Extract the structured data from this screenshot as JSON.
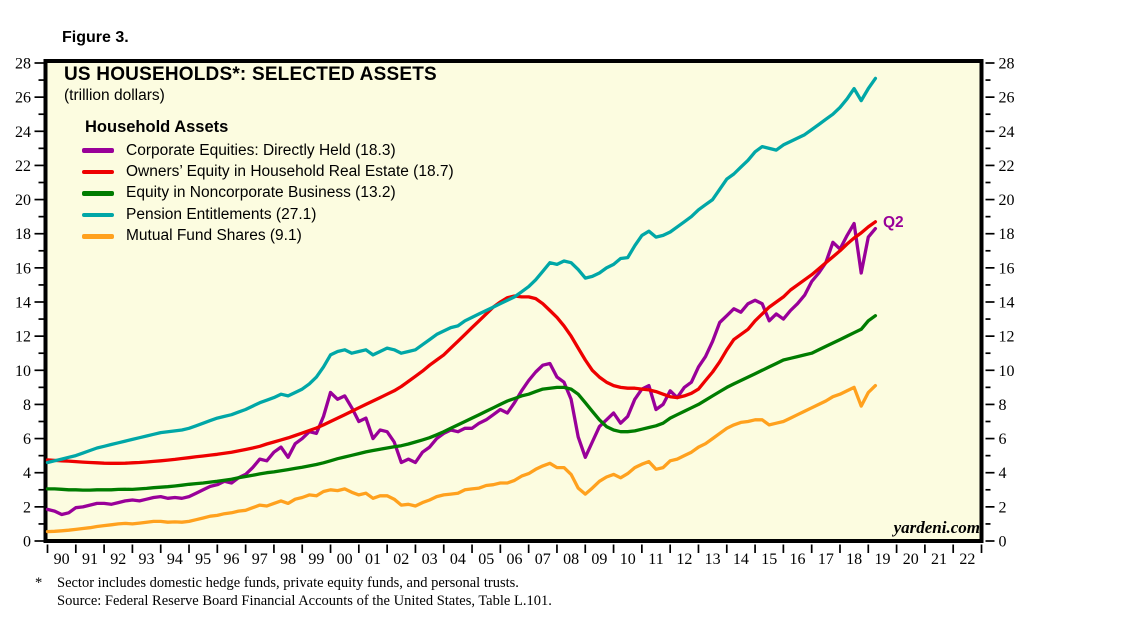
{
  "figure_label": "Figure 3.",
  "chart": {
    "title": "US HOUSEHOLDS*: SELECTED ASSETS",
    "subtitle": "(trillion dollars)",
    "legend_title": "Household Assets",
    "annotation_q2": "Q2",
    "watermark": "yardeni.com",
    "background_color": "#FCFCE0",
    "frame_color": "#000000"
  },
  "footnote": {
    "marker": "*",
    "line1": "Sector includes domestic hedge funds, private equity funds, and personal trusts.",
    "line2": "Source: Federal Reserve Board Financial Accounts of the United States, Table L.101."
  },
  "chart_data": {
    "type": "line",
    "title": "US HOUSEHOLDS*: SELECTED ASSETS",
    "ylabel": "trillion dollars",
    "xlim": [
      1990,
      2023
    ],
    "ylim": [
      0,
      28
    ],
    "y_major_tick_step": 2,
    "y_minor_tick_step": 1,
    "y_tick_labels": [
      "0",
      "2",
      "4",
      "6",
      "8",
      "10",
      "12",
      "14",
      "16",
      "18",
      "20",
      "22",
      "24",
      "26",
      "28"
    ],
    "x_year_labels": [
      "90",
      "91",
      "92",
      "93",
      "94",
      "95",
      "96",
      "97",
      "98",
      "99",
      "00",
      "01",
      "02",
      "03",
      "04",
      "05",
      "06",
      "07",
      "08",
      "09",
      "10",
      "11",
      "12",
      "13",
      "14",
      "15",
      "16",
      "17",
      "18",
      "19",
      "20",
      "21",
      "22"
    ],
    "legend_position": "top-left",
    "grid": false,
    "x_start": 1990.0,
    "x_step": 0.25,
    "series": [
      {
        "key": "corporate-equities-directly-held",
        "legend_label": "Corporate Equities: Directly Held (18.3)",
        "color": "#990099",
        "last_value": 18.3,
        "values": [
          1.85,
          1.75,
          1.55,
          1.65,
          1.95,
          2.0,
          2.1,
          2.2,
          2.2,
          2.15,
          2.25,
          2.35,
          2.4,
          2.35,
          2.45,
          2.55,
          2.6,
          2.5,
          2.55,
          2.5,
          2.6,
          2.8,
          3.0,
          3.2,
          3.3,
          3.5,
          3.4,
          3.7,
          3.9,
          4.3,
          4.8,
          4.7,
          5.2,
          5.5,
          4.9,
          5.7,
          6.0,
          6.4,
          6.3,
          7.3,
          8.7,
          8.3,
          8.5,
          7.8,
          7.0,
          7.2,
          6.0,
          6.5,
          6.4,
          5.8,
          4.6,
          4.8,
          4.6,
          5.2,
          5.5,
          6.0,
          6.3,
          6.5,
          6.4,
          6.6,
          6.6,
          6.9,
          7.1,
          7.4,
          7.7,
          7.5,
          8.1,
          8.8,
          9.4,
          9.9,
          10.3,
          10.4,
          9.6,
          9.3,
          8.3,
          6.1,
          4.9,
          5.8,
          6.7,
          7.1,
          7.5,
          6.9,
          7.3,
          8.3,
          8.9,
          9.1,
          7.7,
          8.0,
          8.8,
          8.4,
          9.0,
          9.3,
          10.2,
          10.8,
          11.7,
          12.8,
          13.2,
          13.6,
          13.4,
          13.9,
          14.1,
          13.9,
          12.9,
          13.3,
          13.0,
          13.5,
          13.9,
          14.4,
          15.2,
          15.7,
          16.3,
          17.5,
          17.1,
          17.9,
          18.6,
          15.7,
          17.8,
          18.3
        ]
      },
      {
        "key": "owners-equity-household-real-estate",
        "legend_label": "Owners’ Equity in Household Real Estate (18.7)",
        "color": "#EE0000",
        "last_value": 18.7,
        "values": [
          4.75,
          4.72,
          4.7,
          4.68,
          4.65,
          4.62,
          4.6,
          4.58,
          4.56,
          4.55,
          4.55,
          4.56,
          4.58,
          4.6,
          4.63,
          4.66,
          4.7,
          4.74,
          4.78,
          4.83,
          4.88,
          4.93,
          4.98,
          5.03,
          5.08,
          5.14,
          5.2,
          5.28,
          5.36,
          5.45,
          5.55,
          5.68,
          5.8,
          5.92,
          6.04,
          6.18,
          6.32,
          6.47,
          6.62,
          6.8,
          7.0,
          7.2,
          7.4,
          7.6,
          7.8,
          8.0,
          8.2,
          8.4,
          8.6,
          8.8,
          9.05,
          9.35,
          9.65,
          9.95,
          10.3,
          10.6,
          10.9,
          11.3,
          11.7,
          12.1,
          12.5,
          12.9,
          13.3,
          13.7,
          14.0,
          14.25,
          14.35,
          14.3,
          14.3,
          14.2,
          13.9,
          13.5,
          13.1,
          12.6,
          12.0,
          11.3,
          10.6,
          10.0,
          9.6,
          9.3,
          9.1,
          9.0,
          8.95,
          8.95,
          8.9,
          8.85,
          8.75,
          8.6,
          8.45,
          8.4,
          8.5,
          8.65,
          8.9,
          9.4,
          9.9,
          10.5,
          11.2,
          11.8,
          12.1,
          12.4,
          12.9,
          13.3,
          13.7,
          14.0,
          14.3,
          14.7,
          15.0,
          15.3,
          15.6,
          15.95,
          16.3,
          16.65,
          17.0,
          17.4,
          17.75,
          18.05,
          18.4,
          18.7
        ]
      },
      {
        "key": "equity-in-noncorporate-business",
        "legend_label": "Equity in Noncorporate Business (13.2)",
        "color": "#007C00",
        "last_value": 13.2,
        "values": [
          3.05,
          3.05,
          3.03,
          3.0,
          3.0,
          2.98,
          2.98,
          3.0,
          3.0,
          3.0,
          3.02,
          3.03,
          3.02,
          3.05,
          3.08,
          3.12,
          3.15,
          3.18,
          3.22,
          3.27,
          3.32,
          3.36,
          3.4,
          3.45,
          3.5,
          3.56,
          3.62,
          3.7,
          3.78,
          3.85,
          3.93,
          4.0,
          4.05,
          4.12,
          4.18,
          4.25,
          4.32,
          4.4,
          4.48,
          4.58,
          4.7,
          4.82,
          4.92,
          5.02,
          5.12,
          5.22,
          5.3,
          5.38,
          5.45,
          5.52,
          5.58,
          5.68,
          5.8,
          5.92,
          6.05,
          6.22,
          6.4,
          6.6,
          6.8,
          7.0,
          7.2,
          7.4,
          7.6,
          7.8,
          8.0,
          8.2,
          8.35,
          8.5,
          8.6,
          8.75,
          8.9,
          8.95,
          9.0,
          9.0,
          8.9,
          8.6,
          8.1,
          7.6,
          7.1,
          6.7,
          6.5,
          6.4,
          6.4,
          6.45,
          6.55,
          6.65,
          6.75,
          6.9,
          7.2,
          7.4,
          7.6,
          7.8,
          8.0,
          8.25,
          8.5,
          8.75,
          9.0,
          9.2,
          9.4,
          9.6,
          9.8,
          10.0,
          10.2,
          10.4,
          10.6,
          10.7,
          10.8,
          10.9,
          11.0,
          11.2,
          11.4,
          11.6,
          11.8,
          12.0,
          12.2,
          12.4,
          12.9,
          13.2
        ]
      },
      {
        "key": "pension-entitlements",
        "legend_label": "Pension Entitlements (27.1)",
        "color": "#00A7A7",
        "last_value": 27.1,
        "values": [
          4.6,
          4.7,
          4.8,
          4.9,
          5.0,
          5.15,
          5.3,
          5.45,
          5.55,
          5.65,
          5.75,
          5.85,
          5.95,
          6.05,
          6.15,
          6.25,
          6.35,
          6.4,
          6.45,
          6.5,
          6.6,
          6.75,
          6.9,
          7.05,
          7.2,
          7.3,
          7.4,
          7.55,
          7.7,
          7.9,
          8.1,
          8.25,
          8.4,
          8.6,
          8.5,
          8.7,
          8.9,
          9.2,
          9.6,
          10.2,
          10.9,
          11.1,
          11.2,
          11.0,
          11.1,
          11.2,
          10.9,
          11.1,
          11.3,
          11.2,
          11.0,
          11.1,
          11.2,
          11.5,
          11.8,
          12.1,
          12.3,
          12.5,
          12.6,
          12.9,
          13.1,
          13.3,
          13.5,
          13.7,
          13.9,
          14.1,
          14.3,
          14.6,
          14.9,
          15.3,
          15.8,
          16.3,
          16.2,
          16.4,
          16.3,
          15.9,
          15.4,
          15.5,
          15.7,
          16.0,
          16.2,
          16.55,
          16.6,
          17.3,
          17.9,
          18.15,
          17.8,
          17.9,
          18.1,
          18.4,
          18.7,
          19.0,
          19.4,
          19.7,
          20.0,
          20.6,
          21.2,
          21.5,
          21.9,
          22.3,
          22.8,
          23.1,
          23.0,
          22.9,
          23.2,
          23.4,
          23.6,
          23.8,
          24.1,
          24.4,
          24.7,
          25.0,
          25.4,
          25.9,
          26.5,
          25.8,
          26.5,
          27.1
        ]
      },
      {
        "key": "mutual-fund-shares",
        "legend_label": "Mutual Fund Shares (9.1)",
        "color": "#FFA11E",
        "last_value": 9.1,
        "values": [
          0.55,
          0.57,
          0.6,
          0.63,
          0.68,
          0.73,
          0.78,
          0.85,
          0.9,
          0.95,
          1.0,
          1.03,
          1.0,
          1.05,
          1.1,
          1.15,
          1.15,
          1.1,
          1.12,
          1.1,
          1.15,
          1.25,
          1.35,
          1.45,
          1.5,
          1.6,
          1.65,
          1.75,
          1.8,
          1.95,
          2.1,
          2.05,
          2.2,
          2.35,
          2.2,
          2.45,
          2.55,
          2.7,
          2.65,
          2.9,
          3.0,
          2.95,
          3.05,
          2.85,
          2.7,
          2.8,
          2.5,
          2.65,
          2.65,
          2.45,
          2.1,
          2.15,
          2.05,
          2.25,
          2.4,
          2.6,
          2.7,
          2.75,
          2.8,
          3.0,
          3.05,
          3.1,
          3.25,
          3.3,
          3.4,
          3.4,
          3.55,
          3.8,
          3.95,
          4.2,
          4.4,
          4.55,
          4.3,
          4.3,
          3.9,
          3.1,
          2.75,
          3.1,
          3.5,
          3.75,
          3.9,
          3.7,
          3.95,
          4.3,
          4.5,
          4.65,
          4.2,
          4.3,
          4.7,
          4.8,
          5.0,
          5.2,
          5.5,
          5.7,
          6.0,
          6.3,
          6.6,
          6.8,
          6.95,
          7.0,
          7.1,
          7.1,
          6.8,
          6.9,
          7.0,
          7.2,
          7.4,
          7.6,
          7.8,
          8.0,
          8.2,
          8.45,
          8.6,
          8.8,
          9.0,
          7.9,
          8.7,
          9.1
        ]
      }
    ]
  }
}
